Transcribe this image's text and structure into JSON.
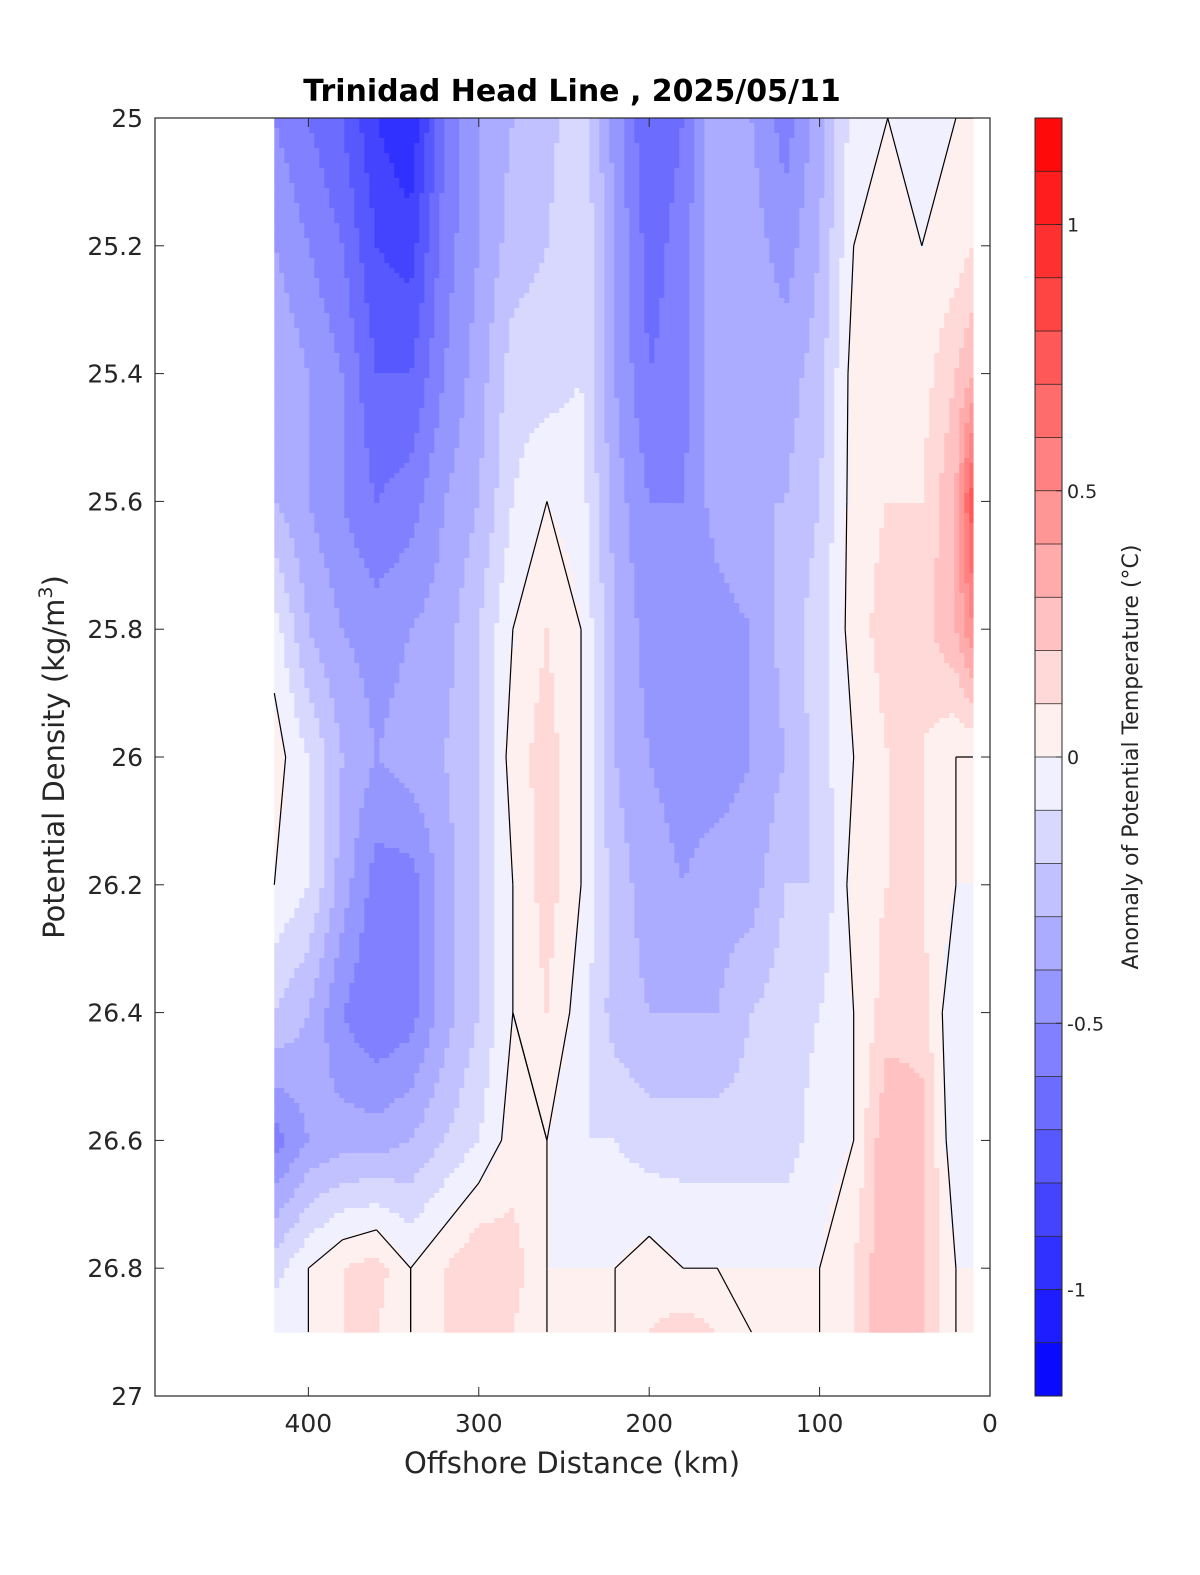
{
  "chart_data": {
    "type": "heatmap",
    "subtype": "filled-contour",
    "title": "Trinidad Head Line , 2025/05/11",
    "xlabel": "Offshore Distance (km)",
    "ylabel": "Potential Density (kg/m3)",
    "ylabel_main": "Potential Density (kg/m",
    "ylabel_sup": "3",
    "ylabel_close": ")",
    "xlim": [
      490,
      0
    ],
    "ylim": [
      25,
      27
    ],
    "x_reversed": true,
    "y_reversed": true,
    "xticks": [
      400,
      300,
      200,
      100,
      0
    ],
    "xtick_labels": [
      "400",
      "300",
      "200",
      "100",
      "0"
    ],
    "yticks": [
      25,
      25.2,
      25.4,
      25.6,
      25.8,
      26,
      26.2,
      26.4,
      26.6,
      26.8,
      27
    ],
    "ytick_labels": [
      "25",
      "25.2",
      "25.4",
      "25.6",
      "25.8",
      "26",
      "26.2",
      "26.4",
      "26.6",
      "26.8",
      "27"
    ],
    "colorbar": {
      "label": "Anomaly of Potential Temperature (°C)",
      "range": [
        -1.2,
        1.2
      ],
      "step": 0.1,
      "tick_values": [
        1,
        0.5,
        0,
        -0.5,
        -1
      ],
      "tick_labels": [
        "1",
        "0.5",
        "0",
        "-0.5",
        "-1"
      ],
      "low_color": "#0000ff",
      "mid_color": "#ffffff",
      "high_color": "#ff0000"
    },
    "contour_line_level": 0,
    "distance_km": [
      420,
      400,
      380,
      360,
      340,
      320,
      300,
      280,
      260,
      240,
      220,
      200,
      180,
      160,
      140,
      120,
      100,
      80,
      60,
      40,
      20,
      10
    ],
    "density": [
      25.0,
      25.2,
      25.4,
      25.6,
      25.8,
      26.0,
      26.2,
      26.4,
      26.6,
      26.8,
      26.9
    ],
    "anomaly": [
      [
        -0.5,
        -0.6,
        -0.7,
        -0.9,
        -1.0,
        -0.6,
        -0.4,
        -0.3,
        -0.25,
        -0.1,
        -0.45,
        -0.7,
        -0.6,
        -0.3,
        -0.4,
        -0.55,
        -0.35,
        -0.05,
        0.0,
        -0.05,
        0.0,
        0.0
      ],
      [
        -0.4,
        -0.5,
        -0.6,
        -0.8,
        -0.85,
        -0.55,
        -0.4,
        -0.25,
        -0.2,
        -0.1,
        -0.4,
        -0.65,
        -0.55,
        -0.3,
        -0.35,
        -0.45,
        -0.3,
        0.0,
        0.05,
        0.0,
        0.05,
        0.1
      ],
      [
        -0.3,
        -0.4,
        -0.5,
        -0.7,
        -0.7,
        -0.5,
        -0.35,
        -0.15,
        -0.15,
        -0.1,
        -0.4,
        -0.6,
        -0.55,
        -0.3,
        -0.3,
        -0.35,
        -0.25,
        0.05,
        0.1,
        0.05,
        0.2,
        0.3
      ],
      [
        -0.3,
        -0.4,
        -0.5,
        -0.6,
        -0.55,
        -0.4,
        -0.3,
        -0.1,
        0.0,
        -0.05,
        -0.35,
        -0.5,
        -0.5,
        -0.35,
        -0.3,
        -0.3,
        -0.2,
        0.05,
        0.1,
        0.1,
        0.3,
        0.8
      ],
      [
        -0.05,
        -0.3,
        -0.4,
        -0.45,
        -0.4,
        -0.35,
        -0.2,
        0.0,
        0.1,
        0.0,
        -0.3,
        -0.45,
        -0.5,
        -0.45,
        -0.4,
        -0.25,
        -0.15,
        0.05,
        0.15,
        0.15,
        0.3,
        0.5
      ],
      [
        0.05,
        -0.1,
        -0.3,
        -0.4,
        -0.35,
        -0.3,
        -0.2,
        0.05,
        0.15,
        0.0,
        -0.3,
        -0.4,
        -0.45,
        -0.45,
        -0.4,
        -0.3,
        -0.15,
        0.0,
        0.1,
        0.1,
        0.0,
        0.0
      ],
      [
        0.0,
        -0.1,
        -0.35,
        -0.55,
        -0.55,
        -0.35,
        -0.2,
        0.0,
        0.15,
        0.0,
        -0.25,
        -0.35,
        -0.4,
        -0.35,
        -0.35,
        -0.2,
        -0.2,
        0.05,
        0.1,
        0.1,
        0.0,
        0.0
      ],
      [
        -0.2,
        -0.3,
        -0.5,
        -0.6,
        -0.55,
        -0.35,
        -0.2,
        0.0,
        0.1,
        -0.05,
        -0.25,
        -0.3,
        -0.3,
        -0.3,
        -0.2,
        -0.15,
        -0.1,
        0.0,
        0.15,
        0.15,
        -0.1,
        0.0
      ],
      [
        -0.55,
        -0.4,
        -0.35,
        -0.35,
        -0.3,
        -0.2,
        -0.1,
        0.05,
        0.0,
        -0.1,
        -0.1,
        -0.15,
        -0.15,
        -0.15,
        -0.15,
        -0.15,
        -0.05,
        0.0,
        0.3,
        0.25,
        -0.1,
        0.0
      ],
      [
        -0.15,
        0.0,
        0.1,
        0.15,
        0.0,
        0.1,
        0.2,
        0.15,
        0.0,
        0.0,
        0.0,
        0.05,
        0.0,
        0.0,
        0.0,
        0.0,
        0.0,
        0.1,
        0.3,
        0.2,
        0.0,
        0.0
      ],
      [
        0.0,
        0.0,
        0.1,
        0.1,
        0.0,
        0.1,
        0.15,
        0.1,
        0.0,
        0.0,
        0.0,
        0.1,
        0.15,
        0.1,
        0.0,
        0.0,
        0.0,
        0.1,
        0.3,
        0.2,
        0.0,
        0.0
      ]
    ]
  }
}
